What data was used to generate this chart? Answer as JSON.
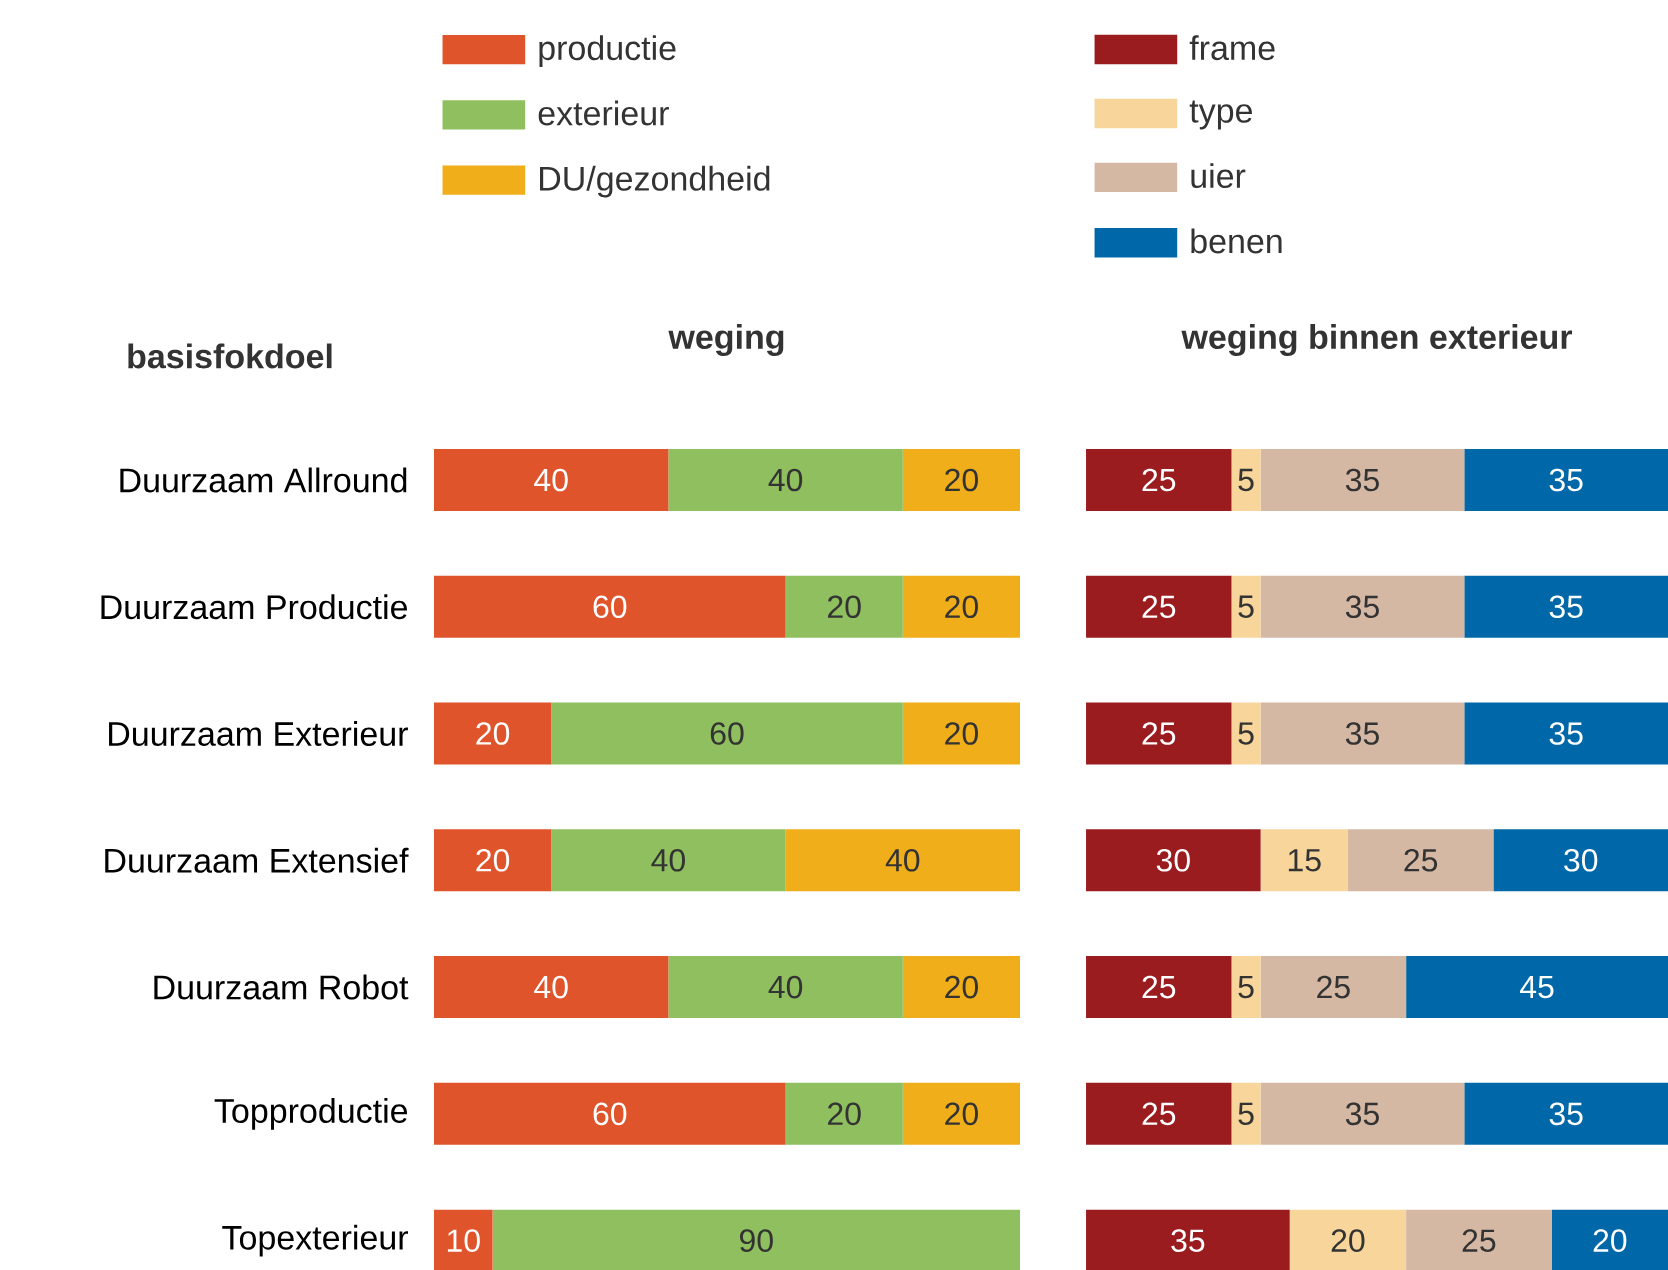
{
  "chart_data": [
    {
      "type": "bar",
      "orientation": "horizontal",
      "stacked": true,
      "data_labels": true,
      "legend": "top",
      "tick_labels": "y",
      "title": "weging",
      "ylabel": "basisfokdoel",
      "categories": [
        "Duurzaam Allround",
        "Duurzaam Productie",
        "Duurzaam Exterieur",
        "Duurzaam Extensief",
        "Duurzaam Robot",
        "Topproductie",
        "Topexterieur"
      ],
      "series": [
        {
          "name": "productie",
          "color": "#e0542c",
          "values": [
            40,
            60,
            20,
            20,
            40,
            60,
            10
          ]
        },
        {
          "name": "exterieur",
          "color": "#8fbf5f",
          "values": [
            40,
            20,
            60,
            40,
            40,
            20,
            90
          ]
        },
        {
          "name": "DU/gezondheid",
          "color": "#f0ae1a",
          "values": [
            20,
            20,
            20,
            40,
            20,
            20,
            null
          ]
        }
      ]
    },
    {
      "type": "bar",
      "orientation": "horizontal",
      "stacked": true,
      "data_labels": true,
      "legend": "top",
      "tick_labels": false,
      "title": "weging binnen exterieur",
      "categories": [
        null,
        null,
        null,
        null,
        null,
        null,
        null
      ],
      "series": [
        {
          "name": "frame",
          "color": "#9b1c1f",
          "values": [
            25,
            25,
            25,
            30,
            25,
            25,
            35
          ]
        },
        {
          "name": "type",
          "color": "#f7d59b",
          "values": [
            5,
            5,
            5,
            15,
            5,
            5,
            20
          ]
        },
        {
          "name": "uier",
          "color": "#d4b8a4",
          "values": [
            35,
            35,
            35,
            25,
            25,
            35,
            25
          ]
        },
        {
          "name": "benen",
          "color": "#0068a8",
          "values": [
            35,
            35,
            35,
            30,
            45,
            35,
            20
          ]
        }
      ]
    }
  ]
}
